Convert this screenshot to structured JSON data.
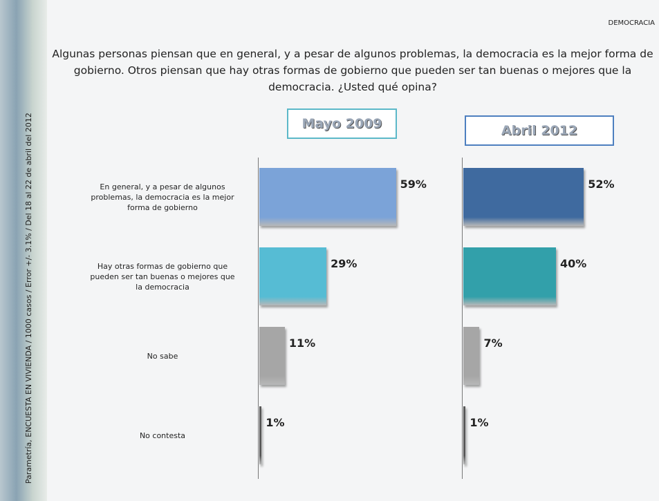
{
  "header": "DEMOCRACIA",
  "question": "Algunas personas piensan que en general, y a pesar de algunos problemas, la democracia es la mejor forma de gobierno. Otros piensan que hay otras formas de gobierno que pueden ser tan buenas o mejores que la democracia. ¿Usted qué opina?",
  "source": "Parametría, ENCUESTA EN VIVIENDA / 1000 casos / Error +/- 3.1% / Del 18 al 22 de abril del 2012",
  "chart_data": [
    {
      "type": "bar",
      "title": "Mayo 2009",
      "categories": [
        "En general, y a pesar de algunos problemas, la democracia es la mejor forma de gobierno",
        "Hay otras formas de gobierno que pueden ser tan buenas o mejores que la democracia",
        "No sabe",
        "No contesta"
      ],
      "values": [
        59,
        29,
        11,
        1
      ],
      "value_labels": [
        "59%",
        "29%",
        "11%",
        "1%"
      ],
      "colors": [
        "#7ba3d8",
        "#56bcd4",
        "#a6a6a6",
        "#595959"
      ],
      "border_color": "#5bb8c8"
    },
    {
      "type": "bar",
      "title": "Abril 2012",
      "values": [
        52,
        40,
        7,
        1
      ],
      "value_labels": [
        "52%",
        "40%",
        "7%",
        "1%"
      ],
      "colors": [
        "#3f6a9f",
        "#32a0aa",
        "#a6a6a6",
        "#595959"
      ],
      "border_color": "#4d7fbf"
    }
  ]
}
